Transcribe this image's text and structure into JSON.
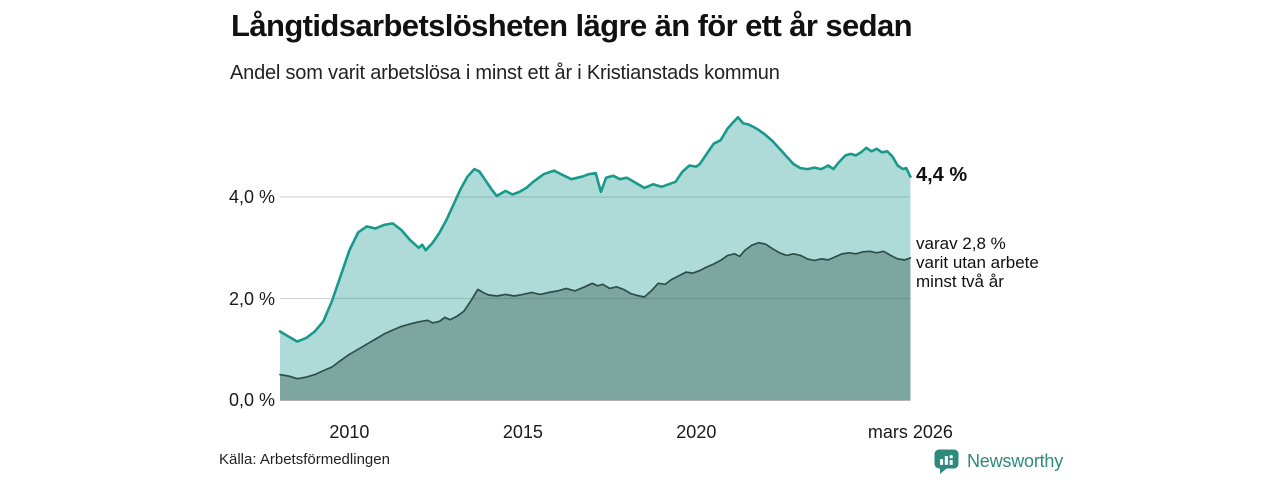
{
  "header": {
    "title": "Långtidsarbetslösheten lägre än för ett år sedan",
    "subtitle": "Andel som varit arbetslösa i minst ett år i Kristianstads kommun"
  },
  "annotations": {
    "latest_value": "4,4 %",
    "secondary_line1": "varav 2,8 %",
    "secondary_line2": "varit utan arbete",
    "secondary_line3": "minst två år"
  },
  "footer": {
    "source": "Källa: Arbetsförmedlingen",
    "brand": "Newsworthy"
  },
  "colors": {
    "accent_teal": "#18998b",
    "dark_series": "#2d4e48",
    "gridline": "#d4d4d4",
    "baseline": "#9a9a9a",
    "brand_teal": "#2e8a7d"
  },
  "chart_data": {
    "type": "area",
    "title": "Långtidsarbetslösheten lägre än för ett år sedan",
    "subtitle": "Andel som varit arbetslösa i minst ett år i Kristianstads kommun",
    "unit": "%",
    "grid": "horizontal",
    "legend": "none (direct end labels)",
    "x_axis": {
      "range": [
        2008.0,
        2026.17
      ],
      "ticks": [
        {
          "t": 2010,
          "label": "2010"
        },
        {
          "t": 2015,
          "label": "2015"
        },
        {
          "t": 2020,
          "label": "2020"
        },
        {
          "t": 2026.17,
          "label": "mars 2026"
        }
      ]
    },
    "y_axis": {
      "range": [
        0,
        5.9
      ],
      "ticks": [
        {
          "v": 4,
          "label": "4,0 %"
        },
        {
          "v": 2,
          "label": "2,0 %"
        },
        {
          "v": 0,
          "label": "0,0 %"
        }
      ]
    },
    "series": [
      {
        "name": "Andel arbetslösa minst ett år",
        "end_label": "4,4 %",
        "end_value": 4.4,
        "line_color": "#18998b",
        "line_width": 2.6,
        "fill_color": "rgba(24,153,139,0.35)",
        "points": [
          [
            2008.0,
            1.35
          ],
          [
            2008.25,
            1.25
          ],
          [
            2008.5,
            1.15
          ],
          [
            2008.75,
            1.22
          ],
          [
            2009.0,
            1.35
          ],
          [
            2009.25,
            1.55
          ],
          [
            2009.5,
            1.95
          ],
          [
            2009.75,
            2.45
          ],
          [
            2010.0,
            2.95
          ],
          [
            2010.25,
            3.3
          ],
          [
            2010.5,
            3.42
          ],
          [
            2010.75,
            3.38
          ],
          [
            2011.0,
            3.45
          ],
          [
            2011.25,
            3.48
          ],
          [
            2011.5,
            3.35
          ],
          [
            2011.75,
            3.15
          ],
          [
            2012.0,
            3.0
          ],
          [
            2012.1,
            3.06
          ],
          [
            2012.2,
            2.95
          ],
          [
            2012.4,
            3.1
          ],
          [
            2012.6,
            3.3
          ],
          [
            2012.8,
            3.55
          ],
          [
            2013.0,
            3.85
          ],
          [
            2013.2,
            4.15
          ],
          [
            2013.4,
            4.4
          ],
          [
            2013.6,
            4.55
          ],
          [
            2013.75,
            4.5
          ],
          [
            2013.9,
            4.35
          ],
          [
            2014.1,
            4.15
          ],
          [
            2014.25,
            4.02
          ],
          [
            2014.5,
            4.12
          ],
          [
            2014.7,
            4.05
          ],
          [
            2014.9,
            4.1
          ],
          [
            2015.1,
            4.18
          ],
          [
            2015.3,
            4.3
          ],
          [
            2015.6,
            4.45
          ],
          [
            2015.9,
            4.52
          ],
          [
            2016.1,
            4.45
          ],
          [
            2016.4,
            4.35
          ],
          [
            2016.7,
            4.4
          ],
          [
            2016.9,
            4.45
          ],
          [
            2017.1,
            4.47
          ],
          [
            2017.25,
            4.1
          ],
          [
            2017.4,
            4.38
          ],
          [
            2017.6,
            4.42
          ],
          [
            2017.8,
            4.35
          ],
          [
            2018.0,
            4.38
          ],
          [
            2018.25,
            4.28
          ],
          [
            2018.5,
            4.18
          ],
          [
            2018.75,
            4.25
          ],
          [
            2019.0,
            4.2
          ],
          [
            2019.2,
            4.25
          ],
          [
            2019.4,
            4.3
          ],
          [
            2019.6,
            4.5
          ],
          [
            2019.8,
            4.62
          ],
          [
            2020.0,
            4.6
          ],
          [
            2020.1,
            4.65
          ],
          [
            2020.3,
            4.85
          ],
          [
            2020.5,
            5.05
          ],
          [
            2020.7,
            5.12
          ],
          [
            2020.9,
            5.35
          ],
          [
            2021.1,
            5.5
          ],
          [
            2021.2,
            5.57
          ],
          [
            2021.35,
            5.45
          ],
          [
            2021.5,
            5.43
          ],
          [
            2021.65,
            5.38
          ],
          [
            2021.8,
            5.32
          ],
          [
            2022.0,
            5.22
          ],
          [
            2022.2,
            5.1
          ],
          [
            2022.4,
            4.95
          ],
          [
            2022.6,
            4.8
          ],
          [
            2022.8,
            4.65
          ],
          [
            2023.0,
            4.57
          ],
          [
            2023.2,
            4.55
          ],
          [
            2023.4,
            4.58
          ],
          [
            2023.6,
            4.55
          ],
          [
            2023.8,
            4.62
          ],
          [
            2023.95,
            4.55
          ],
          [
            2024.1,
            4.68
          ],
          [
            2024.3,
            4.82
          ],
          [
            2024.45,
            4.85
          ],
          [
            2024.6,
            4.82
          ],
          [
            2024.75,
            4.88
          ],
          [
            2024.9,
            4.97
          ],
          [
            2025.05,
            4.9
          ],
          [
            2025.2,
            4.95
          ],
          [
            2025.35,
            4.88
          ],
          [
            2025.5,
            4.9
          ],
          [
            2025.65,
            4.8
          ],
          [
            2025.8,
            4.62
          ],
          [
            2025.95,
            4.55
          ],
          [
            2026.05,
            4.57
          ],
          [
            2026.17,
            4.4
          ]
        ]
      },
      {
        "name": "varav arbetslösa minst två år",
        "end_label": "varav 2,8 % varit utan arbete minst två år",
        "end_value": 2.8,
        "line_color": "#2d4e48",
        "line_width": 1.7,
        "fill_color": "rgba(45,78,72,0.38)",
        "points": [
          [
            2008.0,
            0.5
          ],
          [
            2008.25,
            0.47
          ],
          [
            2008.5,
            0.42
          ],
          [
            2008.75,
            0.45
          ],
          [
            2009.0,
            0.5
          ],
          [
            2009.25,
            0.58
          ],
          [
            2009.5,
            0.65
          ],
          [
            2009.75,
            0.78
          ],
          [
            2010.0,
            0.9
          ],
          [
            2010.25,
            1.0
          ],
          [
            2010.5,
            1.1
          ],
          [
            2010.75,
            1.2
          ],
          [
            2011.0,
            1.3
          ],
          [
            2011.25,
            1.38
          ],
          [
            2011.5,
            1.45
          ],
          [
            2011.75,
            1.5
          ],
          [
            2012.0,
            1.54
          ],
          [
            2012.25,
            1.57
          ],
          [
            2012.4,
            1.52
          ],
          [
            2012.6,
            1.55
          ],
          [
            2012.75,
            1.63
          ],
          [
            2012.9,
            1.58
          ],
          [
            2013.1,
            1.65
          ],
          [
            2013.3,
            1.75
          ],
          [
            2013.5,
            1.95
          ],
          [
            2013.7,
            2.18
          ],
          [
            2013.85,
            2.12
          ],
          [
            2014.0,
            2.07
          ],
          [
            2014.25,
            2.05
          ],
          [
            2014.5,
            2.08
          ],
          [
            2014.75,
            2.05
          ],
          [
            2015.0,
            2.08
          ],
          [
            2015.25,
            2.12
          ],
          [
            2015.5,
            2.08
          ],
          [
            2015.75,
            2.12
          ],
          [
            2016.0,
            2.15
          ],
          [
            2016.25,
            2.2
          ],
          [
            2016.5,
            2.15
          ],
          [
            2016.75,
            2.22
          ],
          [
            2017.0,
            2.3
          ],
          [
            2017.15,
            2.25
          ],
          [
            2017.3,
            2.28
          ],
          [
            2017.5,
            2.2
          ],
          [
            2017.7,
            2.23
          ],
          [
            2017.9,
            2.18
          ],
          [
            2018.1,
            2.1
          ],
          [
            2018.3,
            2.06
          ],
          [
            2018.5,
            2.03
          ],
          [
            2018.7,
            2.15
          ],
          [
            2018.9,
            2.3
          ],
          [
            2019.1,
            2.28
          ],
          [
            2019.3,
            2.38
          ],
          [
            2019.5,
            2.45
          ],
          [
            2019.7,
            2.52
          ],
          [
            2019.9,
            2.5
          ],
          [
            2020.1,
            2.55
          ],
          [
            2020.3,
            2.62
          ],
          [
            2020.5,
            2.68
          ],
          [
            2020.7,
            2.75
          ],
          [
            2020.9,
            2.85
          ],
          [
            2021.1,
            2.88
          ],
          [
            2021.25,
            2.83
          ],
          [
            2021.4,
            2.95
          ],
          [
            2021.6,
            3.05
          ],
          [
            2021.8,
            3.1
          ],
          [
            2022.0,
            3.07
          ],
          [
            2022.2,
            2.98
          ],
          [
            2022.4,
            2.9
          ],
          [
            2022.6,
            2.85
          ],
          [
            2022.8,
            2.88
          ],
          [
            2023.0,
            2.85
          ],
          [
            2023.2,
            2.78
          ],
          [
            2023.4,
            2.75
          ],
          [
            2023.6,
            2.78
          ],
          [
            2023.8,
            2.76
          ],
          [
            2024.0,
            2.82
          ],
          [
            2024.2,
            2.88
          ],
          [
            2024.4,
            2.9
          ],
          [
            2024.6,
            2.88
          ],
          [
            2024.8,
            2.92
          ],
          [
            2025.0,
            2.93
          ],
          [
            2025.2,
            2.9
          ],
          [
            2025.4,
            2.93
          ],
          [
            2025.6,
            2.85
          ],
          [
            2025.8,
            2.78
          ],
          [
            2026.0,
            2.76
          ],
          [
            2026.17,
            2.8
          ]
        ]
      }
    ]
  }
}
